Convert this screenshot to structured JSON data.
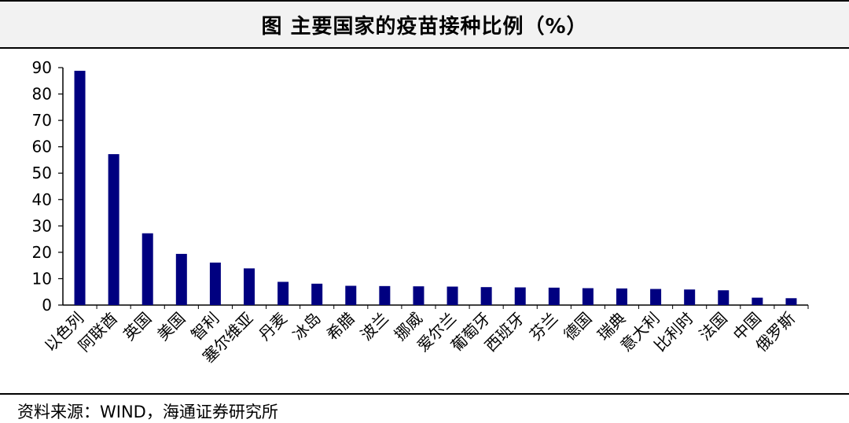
{
  "header": {
    "title": "图  主要国家的疫苗接种比例（%）"
  },
  "source": {
    "text": "资料来源：WIND，海通证券研究所"
  },
  "chart_data": {
    "type": "bar",
    "categories": [
      "以色列",
      "阿联酋",
      "英国",
      "美国",
      "智利",
      "塞尔维亚",
      "丹麦",
      "冰岛",
      "希腊",
      "波兰",
      "挪威",
      "爱尔兰",
      "葡萄牙",
      "西班牙",
      "芬兰",
      "德国",
      "瑞典",
      "意大利",
      "比利时",
      "法国",
      "中国",
      "俄罗斯"
    ],
    "values": [
      88.8,
      57.2,
      27.2,
      19.4,
      16.1,
      13.9,
      8.8,
      8.1,
      7.3,
      7.2,
      7.1,
      7.0,
      6.8,
      6.7,
      6.6,
      6.4,
      6.3,
      6.1,
      5.9,
      5.6,
      2.8,
      2.6
    ],
    "ylim": [
      0,
      90
    ],
    "yticks": [
      0,
      10,
      20,
      30,
      40,
      50,
      60,
      70,
      80,
      90
    ],
    "bar_color": "#000080",
    "grid": false
  }
}
